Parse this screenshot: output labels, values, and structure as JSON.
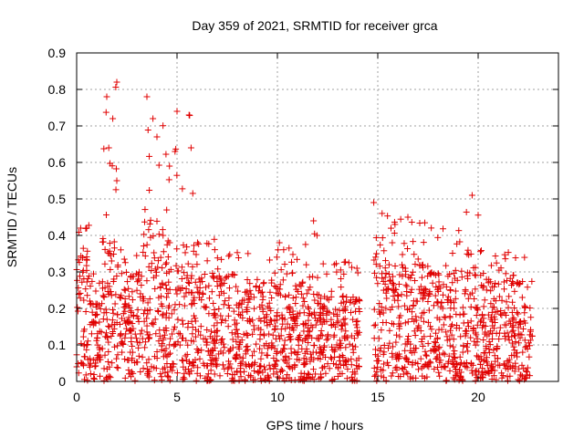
{
  "chart_data": {
    "type": "scatter",
    "title": "Day 359 of 2021, SRMTID for receiver grca",
    "xlabel": "GPS time / hours",
    "ylabel": "SRMTID / TECUs",
    "xlim": [
      0,
      24
    ],
    "ylim": [
      0,
      0.9
    ],
    "xticks": [
      "0",
      "5",
      "10",
      "15",
      "20"
    ],
    "xtick_values": [
      0,
      5,
      10,
      15,
      20
    ],
    "yticks": [
      "0",
      "0.1",
      "0.2",
      "0.3",
      "0.4",
      "0.5",
      "0.6",
      "0.7",
      "0.8",
      "0.9"
    ],
    "ytick_values": [
      0,
      0.1,
      0.2,
      0.3,
      0.4,
      0.5,
      0.6,
      0.7,
      0.8,
      0.9
    ],
    "grid": true,
    "marker": "+",
    "color": "#e00000",
    "data_gap_hours": [
      14.1,
      14.8
    ],
    "density_profile": [
      {
        "x_start": 0.0,
        "x_end": 0.7,
        "typical_max": 0.34,
        "peak": 0.43
      },
      {
        "x_start": 0.7,
        "x_end": 1.2,
        "typical_max": 0.22,
        "peak": 0.3
      },
      {
        "x_start": 1.2,
        "x_end": 2.2,
        "typical_max": 0.4,
        "peak": 0.82
      },
      {
        "x_start": 2.2,
        "x_end": 3.3,
        "typical_max": 0.3,
        "peak": 0.36
      },
      {
        "x_start": 3.3,
        "x_end": 4.3,
        "typical_max": 0.45,
        "peak": 0.78
      },
      {
        "x_start": 4.3,
        "x_end": 5.2,
        "typical_max": 0.4,
        "peak": 0.75
      },
      {
        "x_start": 5.2,
        "x_end": 6.0,
        "typical_max": 0.38,
        "peak": 0.73
      },
      {
        "x_start": 6.0,
        "x_end": 8.0,
        "typical_max": 0.3,
        "peak": 0.39
      },
      {
        "x_start": 8.0,
        "x_end": 11.5,
        "typical_max": 0.28,
        "peak": 0.38
      },
      {
        "x_start": 11.5,
        "x_end": 12.0,
        "typical_max": 0.3,
        "peak": 0.44
      },
      {
        "x_start": 12.0,
        "x_end": 14.1,
        "typical_max": 0.24,
        "peak": 0.34
      },
      {
        "x_start": 14.8,
        "x_end": 15.5,
        "typical_max": 0.34,
        "peak": 0.49
      },
      {
        "x_start": 15.5,
        "x_end": 18.0,
        "typical_max": 0.32,
        "peak": 0.45
      },
      {
        "x_start": 18.0,
        "x_end": 19.4,
        "typical_max": 0.3,
        "peak": 0.43
      },
      {
        "x_start": 19.4,
        "x_end": 20.0,
        "typical_max": 0.35,
        "peak": 0.52
      },
      {
        "x_start": 20.0,
        "x_end": 22.7,
        "typical_max": 0.28,
        "peak": 0.36
      }
    ],
    "notable_points": [
      {
        "x": 2.0,
        "y": 0.82
      },
      {
        "x": 1.5,
        "y": 0.78
      },
      {
        "x": 3.5,
        "y": 0.78
      },
      {
        "x": 5.0,
        "y": 0.74
      },
      {
        "x": 5.6,
        "y": 0.73
      },
      {
        "x": 1.8,
        "y": 0.72
      },
      {
        "x": 3.8,
        "y": 0.72
      },
      {
        "x": 1.6,
        "y": 0.64
      },
      {
        "x": 4.0,
        "y": 0.67
      },
      {
        "x": 5.7,
        "y": 0.64
      },
      {
        "x": 4.9,
        "y": 0.63
      },
      {
        "x": 2.0,
        "y": 0.55
      },
      {
        "x": 14.8,
        "y": 0.49
      },
      {
        "x": 19.7,
        "y": 0.51
      },
      {
        "x": 11.8,
        "y": 0.44
      },
      {
        "x": 16.5,
        "y": 0.45
      },
      {
        "x": 0.2,
        "y": 0.42
      },
      {
        "x": 0.5,
        "y": 0.42
      },
      {
        "x": 10.1,
        "y": 0.38
      }
    ]
  }
}
